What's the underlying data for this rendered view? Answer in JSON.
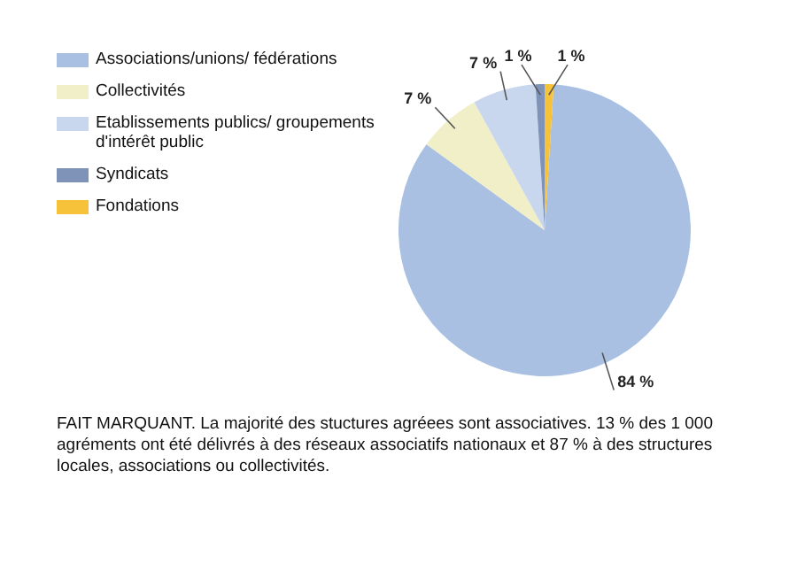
{
  "chart_data": {
    "type": "pie",
    "categories": [
      "Associations/unions/ fédérations",
      "Collectivités",
      "Etablissements publics/ groupements d'intérêt public",
      "Syndicats",
      "Fondations"
    ],
    "values": [
      84,
      7,
      7,
      1,
      1
    ],
    "colors": [
      "#a9c0e2",
      "#f1efc8",
      "#c9d7ee",
      "#7f93b8",
      "#f5c23a"
    ],
    "value_labels": [
      "84 %",
      "7 %",
      "7 %",
      "1 %",
      "1 %"
    ],
    "legend": "left",
    "annotations": [
      "FAIT MARQUANT. La majorité des stuctures agréees sont associatives. 13 % des 1 000 agréments ont été délivrés à des réseaux associatifs nationaux et 87 % à des structures locales, associations ou collectivités."
    ]
  }
}
